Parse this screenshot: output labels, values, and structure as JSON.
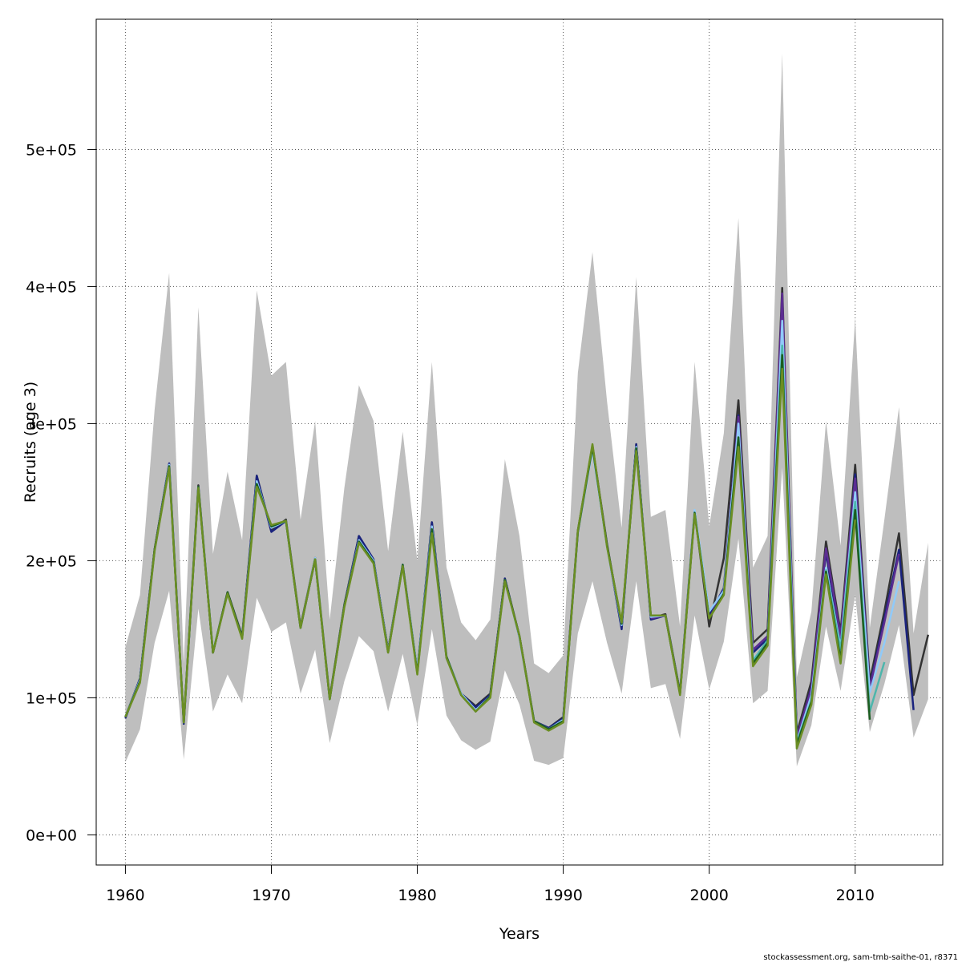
{
  "chart_data": {
    "type": "line",
    "xlabel": "Years",
    "ylabel": "Recruits (age 3)",
    "xlim": [
      1958,
      2016
    ],
    "ylim": [
      -22000,
      595000
    ],
    "x_ticks": [
      1960,
      1970,
      1980,
      1990,
      2000,
      2010
    ],
    "y_ticks": [
      0,
      100000,
      200000,
      300000,
      400000,
      500000
    ],
    "y_tick_labels": [
      "0e+00",
      "1e+05",
      "2e+05",
      "3e+05",
      "4e+05",
      "5e+05"
    ],
    "grid": true,
    "footer_text": "stockassessment.org, sam-tmb-saithe-01, r8371",
    "band": {
      "x": [
        1960,
        1961,
        1962,
        1963,
        1964,
        1965,
        1966,
        1967,
        1968,
        1969,
        1970,
        1971,
        1972,
        1973,
        1974,
        1975,
        1976,
        1977,
        1978,
        1979,
        1980,
        1981,
        1982,
        1983,
        1984,
        1985,
        1986,
        1987,
        1988,
        1989,
        1990,
        1991,
        1992,
        1993,
        1994,
        1995,
        1996,
        1997,
        1998,
        1999,
        2000,
        2001,
        2002,
        2003,
        2004,
        2005,
        2006,
        2007,
        2008,
        2009,
        2010,
        2011,
        2012,
        2013,
        2014,
        2015
      ],
      "lower": [
        53000,
        77000,
        140000,
        178000,
        55000,
        165000,
        90000,
        117000,
        96000,
        173000,
        148000,
        155000,
        103000,
        135000,
        67000,
        112000,
        145000,
        134000,
        90000,
        132000,
        80000,
        150000,
        87000,
        69000,
        62000,
        68000,
        120000,
        95000,
        54000,
        51000,
        56000,
        147000,
        185000,
        140000,
        103000,
        185000,
        107000,
        110000,
        70000,
        160000,
        106000,
        141000,
        216000,
        96000,
        105000,
        268000,
        50000,
        80000,
        152000,
        105000,
        175000,
        75000,
        110000,
        153000,
        71000,
        99000
      ],
      "upper": [
        137000,
        175000,
        310000,
        410000,
        125000,
        385000,
        205000,
        265000,
        215000,
        397000,
        335000,
        345000,
        230000,
        302000,
        157000,
        253000,
        328000,
        302000,
        207000,
        294000,
        200000,
        345000,
        195000,
        155000,
        142000,
        157000,
        274000,
        218000,
        125000,
        118000,
        131000,
        337000,
        425000,
        316000,
        224000,
        407000,
        232000,
        237000,
        152000,
        345000,
        225000,
        293000,
        450000,
        195000,
        218000,
        570000,
        115000,
        163000,
        302000,
        211000,
        377000,
        151000,
        230000,
        312000,
        147000,
        213000
      ]
    },
    "series": [
      {
        "color": "#333333",
        "x": [
          1960,
          1961,
          1962,
          1963,
          1964,
          1965,
          1966,
          1967,
          1968,
          1969,
          1970,
          1971,
          1972,
          1973,
          1974,
          1975,
          1976,
          1977,
          1978,
          1979,
          1980,
          1981,
          1982,
          1983,
          1984,
          1985,
          1986,
          1987,
          1988,
          1989,
          1990,
          1991,
          1992,
          1993,
          1994,
          1995,
          1996,
          1997,
          1998,
          1999,
          2000,
          2001,
          2002,
          2003,
          2004,
          2005,
          2006,
          2007,
          2008,
          2009,
          2010,
          2011,
          2012,
          2013,
          2014,
          2015
        ],
        "values": [
          86000,
          114000,
          208000,
          270000,
          82000,
          255000,
          133000,
          177000,
          145000,
          262000,
          222000,
          230000,
          152000,
          202000,
          100000,
          168000,
          218000,
          200000,
          135000,
          197000,
          120000,
          228000,
          130000,
          103000,
          94000,
          103000,
          187000,
          145000,
          83000,
          78000,
          86000,
          222000,
          284000,
          212000,
          152000,
          285000,
          158000,
          161000,
          104000,
          236000,
          152000,
          202000,
          317000,
          140000,
          150000,
          399000,
          74000,
          112000,
          214000,
          148000,
          270000,
          112000,
          163000,
          220000,
          102000,
          146000
        ]
      },
      {
        "color": "#1a237e",
        "x": [
          1960,
          1961,
          1962,
          1963,
          1964,
          1965,
          1966,
          1967,
          1968,
          1969,
          1970,
          1971,
          1972,
          1973,
          1974,
          1975,
          1976,
          1977,
          1978,
          1979,
          1980,
          1981,
          1982,
          1983,
          1984,
          1985,
          1986,
          1987,
          1988,
          1989,
          1990,
          1991,
          1992,
          1993,
          1994,
          1995,
          1996,
          1997,
          1998,
          1999,
          2000,
          2001,
          2002,
          2003,
          2004,
          2005,
          2006,
          2007,
          2008,
          2009,
          2010,
          2011,
          2012,
          2013,
          2014
        ],
        "values": [
          85000,
          114000,
          208000,
          271000,
          81000,
          254000,
          133000,
          177000,
          144000,
          262000,
          221000,
          229000,
          151000,
          201000,
          99000,
          167000,
          218000,
          201000,
          134000,
          197000,
          119000,
          228000,
          129000,
          103000,
          93000,
          102000,
          187000,
          144000,
          83000,
          78000,
          85000,
          221000,
          283000,
          211000,
          150000,
          285000,
          157000,
          160000,
          103000,
          236000,
          160000,
          180000,
          306000,
          133000,
          143000,
          380000,
          70000,
          108000,
          206000,
          140000,
          263000,
          108000,
          158000,
          208000,
          91000
        ]
      },
      {
        "color": "#5c2d91",
        "x": [
          1996,
          1997,
          1998,
          1999,
          2000,
          2001,
          2002,
          2003,
          2004,
          2005,
          2006,
          2007,
          2008,
          2009,
          2010,
          2011,
          2012,
          2013
        ],
        "values": [
          158000,
          160000,
          103000,
          236000,
          158000,
          178000,
          305000,
          135000,
          145000,
          395000,
          71000,
          107000,
          209000,
          145000,
          260000,
          107000,
          155000,
          205000
        ]
      },
      {
        "color": "#90caf9",
        "x": [
          1960,
          1961,
          1962,
          1963,
          1964,
          1965,
          1966,
          1967,
          1968,
          1969,
          1970,
          1971,
          1972,
          1973,
          1974,
          1975,
          1976,
          1977,
          1978,
          1979,
          1980,
          1981,
          1982,
          1983,
          1984,
          1985,
          1986,
          1987,
          1988,
          1989,
          1990,
          1991,
          1992,
          1993,
          1994,
          1995,
          1996,
          1997,
          1998,
          1999,
          2000,
          2001,
          2002,
          2003,
          2004,
          2005,
          2006,
          2007,
          2008,
          2009,
          2010,
          2011,
          2012,
          2013
        ],
        "values": [
          86000,
          113000,
          207000,
          270000,
          82000,
          254000,
          134000,
          176000,
          144000,
          258000,
          224000,
          229000,
          151000,
          202000,
          99000,
          167000,
          215000,
          200000,
          134000,
          197000,
          120000,
          225000,
          130000,
          103000,
          91000,
          101000,
          186000,
          144000,
          83000,
          77000,
          84000,
          221000,
          281000,
          210000,
          153000,
          283000,
          159000,
          160000,
          103000,
          237000,
          163000,
          178000,
          300000,
          128000,
          140000,
          375000,
          68000,
          102000,
          195000,
          137000,
          250000,
          104000,
          140000,
          185000
        ]
      },
      {
        "color": "#4db6ac",
        "x": [
          2003,
          2004,
          2005,
          2006,
          2007,
          2008,
          2009,
          2010,
          2011,
          2012
        ],
        "values": [
          127000,
          142000,
          357000,
          67000,
          98000,
          193000,
          135000,
          243000,
          90000,
          126000
        ]
      },
      {
        "color": "#1b5e20",
        "x": [
          1960,
          1961,
          1962,
          1963,
          1964,
          1965,
          1966,
          1967,
          1968,
          1969,
          1970,
          1971,
          1972,
          1973,
          1974,
          1975,
          1976,
          1977,
          1978,
          1979,
          1980,
          1981,
          1982,
          1983,
          1984,
          1985,
          1986,
          1987,
          1988,
          1989,
          1990,
          1991,
          1992,
          1993,
          1994,
          1995,
          1996,
          1997,
          1998,
          1999,
          2000,
          2001,
          2002,
          2003,
          2004,
          2005,
          2006,
          2007,
          2008,
          2009,
          2010,
          2011
        ],
        "values": [
          86000,
          112000,
          208000,
          269000,
          82000,
          254000,
          133000,
          177000,
          144000,
          256000,
          225000,
          229000,
          151000,
          201000,
          99000,
          167000,
          214000,
          199000,
          133000,
          197000,
          118000,
          223000,
          130000,
          102000,
          90000,
          101000,
          186000,
          145000,
          83000,
          77000,
          83000,
          221000,
          283000,
          211000,
          154000,
          282000,
          160000,
          160000,
          103000,
          235000,
          158000,
          176000,
          290000,
          125000,
          140000,
          350000,
          66000,
          97000,
          192000,
          128000,
          237000,
          84000
        ]
      },
      {
        "color": "#6b8e23",
        "x": [
          1960,
          1961,
          1962,
          1963,
          1964,
          1965,
          1966,
          1967,
          1968,
          1969,
          1970,
          1971,
          1972,
          1973,
          1974,
          1975,
          1976,
          1977,
          1978,
          1979,
          1980,
          1981,
          1982,
          1983,
          1984,
          1985,
          1986,
          1987,
          1988,
          1989,
          1990,
          1991,
          1992,
          1993,
          1994,
          1995,
          1996,
          1997,
          1998,
          1999,
          2000,
          2001,
          2002,
          2003,
          2004,
          2005,
          2006,
          2007,
          2008,
          2009,
          2010
        ],
        "values": [
          86000,
          111000,
          207000,
          268000,
          82000,
          253000,
          133000,
          176000,
          143000,
          254000,
          226000,
          229000,
          151000,
          201000,
          99000,
          166000,
          213000,
          198000,
          133000,
          196000,
          117000,
          220000,
          129000,
          102000,
          90000,
          100000,
          185000,
          145000,
          82000,
          76000,
          82000,
          222000,
          285000,
          210000,
          155000,
          280000,
          160000,
          160000,
          102000,
          234000,
          158000,
          175000,
          283000,
          123000,
          138000,
          340000,
          63000,
          95000,
          190000,
          125000,
          230000
        ]
      }
    ]
  }
}
